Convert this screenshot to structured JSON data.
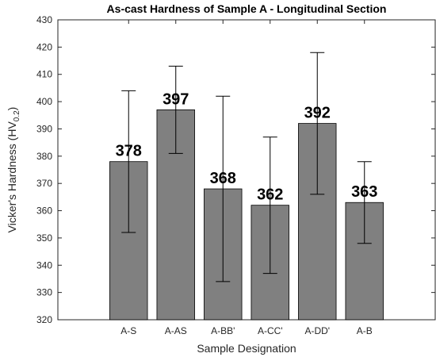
{
  "chart_data": {
    "type": "bar",
    "title": "As-cast Hardness of Sample A - Longitudinal Section",
    "xlabel": "Sample Designation",
    "ylabel": "Vicker's Hardness (HV",
    "ylabel_subscript": "0.2",
    "ylabel_suffix": ")",
    "categories": [
      "A-S",
      "A-AS",
      "A-BB'",
      "A-CC'",
      "A-DD'",
      "A-B"
    ],
    "values": [
      378,
      397,
      368,
      362,
      392,
      363
    ],
    "data_labels": [
      "378",
      "397",
      "368",
      "362",
      "392",
      "363"
    ],
    "error_low": [
      352,
      381,
      334,
      337,
      366,
      348
    ],
    "error_high": [
      404,
      413,
      402,
      387,
      418,
      378
    ],
    "ylim": [
      320,
      430
    ],
    "yticks": [
      320,
      330,
      340,
      350,
      360,
      370,
      380,
      390,
      400,
      410,
      420,
      430
    ],
    "bar_color": "#808080",
    "grid": false
  }
}
